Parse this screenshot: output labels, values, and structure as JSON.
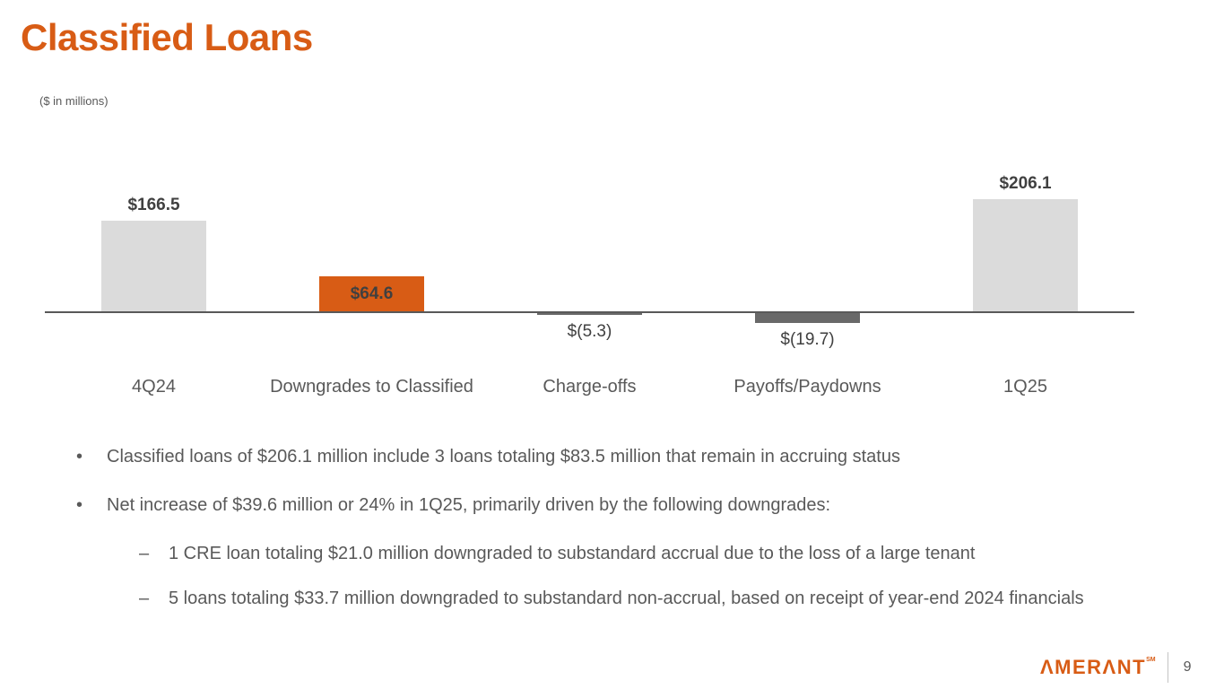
{
  "slide": {
    "title": "Classified Loans",
    "units_note": "($ in millions)",
    "page_number": "9"
  },
  "brand": {
    "name": "Amerant",
    "logo_text": "ΛMERΛNT",
    "logo_trademark": "SM",
    "accent_color": "#D85C15"
  },
  "chart_data": {
    "type": "bar",
    "subtype": "waterfall-style column chart",
    "title": "Classified Loans ($ in millions)",
    "categories": [
      "4Q24",
      "Downgrades to Classified",
      "Charge-offs",
      "Payoffs/Paydowns",
      "1Q25"
    ],
    "values": [
      166.5,
      64.6,
      -5.3,
      -19.7,
      206.1
    ],
    "value_labels": [
      "$166.5",
      "$64.6",
      "$(5.3)",
      "$(19.7)",
      "$206.1"
    ],
    "label_positions": [
      "above",
      "inside",
      "below",
      "below",
      "above"
    ],
    "label_bold": [
      true,
      true,
      false,
      false,
      true
    ],
    "bar_colors": [
      "#DBDBDB",
      "#D85C15",
      "#696969",
      "#696969",
      "#DBDBDB"
    ],
    "baseline": 0,
    "grid": false,
    "legend": false,
    "axis_color": "#595959"
  },
  "bullets": [
    {
      "level": 1,
      "marker": "•",
      "text": "Classified loans of $206.1 million include 3 loans totaling $83.5 million that remain in accruing status"
    },
    {
      "level": 1,
      "marker": "•",
      "text": "Net increase of $39.6 million or 24% in 1Q25, primarily driven by the following downgrades:"
    },
    {
      "level": 2,
      "marker": "–",
      "text": "1 CRE loan totaling $21.0 million downgraded to substandard accrual due to the loss of a large tenant"
    },
    {
      "level": 2,
      "marker": "–",
      "text": "5 loans totaling $33.7 million downgraded to substandard non-accrual, based on receipt of year-end 2024 financials"
    }
  ]
}
